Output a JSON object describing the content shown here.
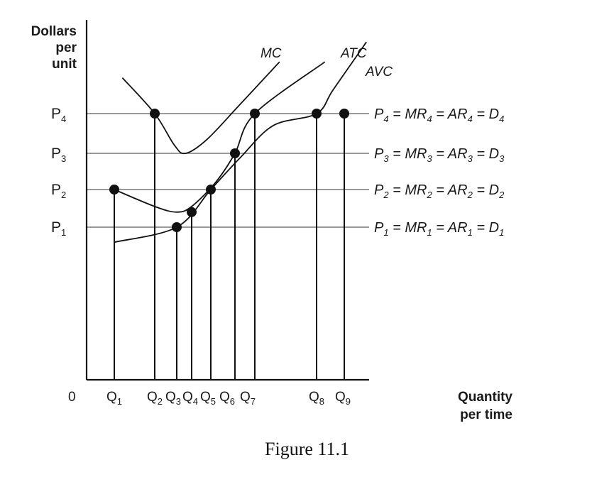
{
  "caption": "Figure 11.1",
  "chart_data": {
    "type": "line",
    "ylabel": [
      "Dollars",
      "per",
      "unit"
    ],
    "xlabel": [
      "Quantity",
      "per time"
    ],
    "origin_label": "0",
    "y_ticks": [
      {
        "base": "P",
        "sub": "1",
        "value": 1
      },
      {
        "base": "P",
        "sub": "2",
        "value": 2
      },
      {
        "base": "P",
        "sub": "3",
        "value": 3
      },
      {
        "base": "P",
        "sub": "4",
        "value": 4
      }
    ],
    "price_lines": [
      {
        "price": 1,
        "label": [
          [
            "P",
            "1"
          ],
          [
            "MR",
            "1"
          ],
          [
            "AR",
            "1"
          ],
          [
            "D",
            "1"
          ]
        ]
      },
      {
        "price": 2,
        "label": [
          [
            "P",
            "2"
          ],
          [
            "MR",
            "2"
          ],
          [
            "AR",
            "2"
          ],
          [
            "D",
            "2"
          ]
        ]
      },
      {
        "price": 3,
        "label": [
          [
            "P",
            "3"
          ],
          [
            "MR",
            "3"
          ],
          [
            "AR",
            "3"
          ],
          [
            "D",
            "3"
          ]
        ]
      },
      {
        "price": 4,
        "label": [
          [
            "P",
            "4"
          ],
          [
            "MR",
            "4"
          ],
          [
            "AR",
            "4"
          ],
          [
            "D",
            "4"
          ]
        ]
      }
    ],
    "x_ticks": [
      {
        "base": "Q",
        "sub": "1",
        "value": 1
      },
      {
        "base": "Q",
        "sub": "2",
        "value": 2
      },
      {
        "base": "Q",
        "sub": "3",
        "value": 3
      },
      {
        "base": "Q",
        "sub": "4",
        "value": 4
      },
      {
        "base": "Q",
        "sub": "5",
        "value": 5
      },
      {
        "base": "Q",
        "sub": "6",
        "value": 6
      },
      {
        "base": "Q",
        "sub": "7",
        "value": 7
      },
      {
        "base": "Q",
        "sub": "8",
        "value": 8
      },
      {
        "base": "Q",
        "sub": "9",
        "value": 9
      }
    ],
    "curves": [
      {
        "name": "MC",
        "points": [
          [
            1.2,
            4.9
          ],
          [
            2.0,
            4.0
          ],
          [
            2.9,
            3.2
          ],
          [
            3.6,
            3.0
          ],
          [
            4.8,
            3.35
          ],
          [
            6.2,
            4.2
          ],
          [
            7.4,
            5.3
          ]
        ]
      },
      {
        "name": "ATC",
        "points": [
          [
            1.0,
            2.0
          ],
          [
            2.0,
            1.55
          ],
          [
            3.0,
            1.4
          ],
          [
            4.0,
            1.55
          ],
          [
            5.2,
            2.2
          ],
          [
            6.0,
            3.0
          ],
          [
            7.0,
            4.0
          ],
          [
            8.3,
            5.3
          ]
        ]
      },
      {
        "name": "AVC",
        "points": [
          [
            1.0,
            0.6
          ],
          [
            3.0,
            1.0
          ],
          [
            5.0,
            2.0
          ],
          [
            6.3,
            2.9
          ],
          [
            7.3,
            3.7
          ],
          [
            8.0,
            4.0
          ],
          [
            8.6,
            4.6
          ],
          [
            9.8,
            5.8
          ]
        ]
      }
    ],
    "points": [
      {
        "q": 1,
        "p": 2
      },
      {
        "q": 2,
        "p": 4
      },
      {
        "q": 3,
        "p": 1
      },
      {
        "q": 4,
        "p": 1.4
      },
      {
        "q": 5,
        "p": 2
      },
      {
        "q": 6,
        "p": 3
      },
      {
        "q": 7,
        "p": 4
      },
      {
        "q": 8,
        "p": 4
      },
      {
        "q": 9,
        "p": 4
      }
    ],
    "curve_labels": [
      "MC",
      "ATC",
      "AVC"
    ],
    "colors": {
      "ink": "#111111",
      "grid": "#9a9a9a"
    }
  }
}
